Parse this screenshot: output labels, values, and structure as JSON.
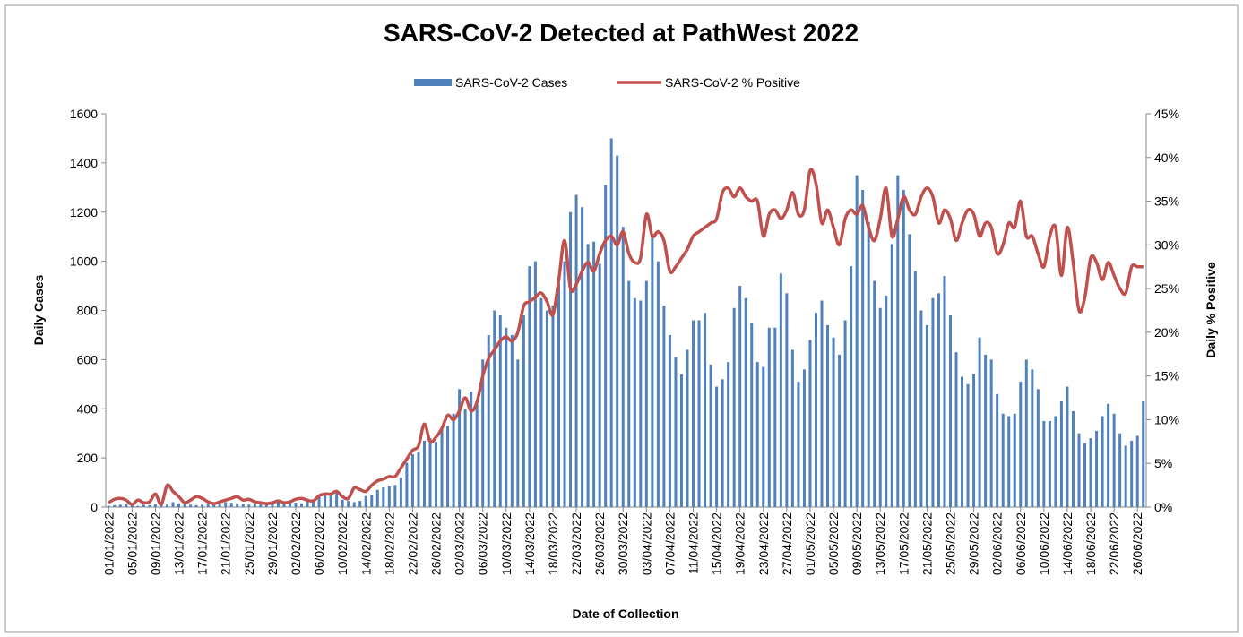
{
  "chart_data": {
    "type": "bar",
    "title": "SARS-CoV-2 Detected at PathWest 2022",
    "x_label": "Date of Collection",
    "y_label": "Daily Cases",
    "y2_label": "Daily % Positive",
    "categories": [
      "01/01/2022",
      null,
      null,
      null,
      "05/01/2022",
      null,
      null,
      null,
      "09/01/2022",
      null,
      null,
      null,
      "13/01/2022",
      null,
      null,
      null,
      "17/01/2022",
      null,
      null,
      null,
      "21/01/2022",
      null,
      null,
      null,
      "25/01/2022",
      null,
      null,
      null,
      "29/01/2022",
      null,
      null,
      null,
      "02/02/2022",
      null,
      null,
      null,
      "06/02/2022",
      null,
      null,
      null,
      "10/02/2022",
      null,
      null,
      null,
      "14/02/2022",
      null,
      null,
      null,
      "18/02/2022",
      null,
      null,
      null,
      "22/02/2022",
      null,
      null,
      null,
      "26/02/2022",
      null,
      null,
      null,
      "02/03/2022",
      null,
      null,
      null,
      "06/03/2022",
      null,
      null,
      null,
      "10/03/2022",
      null,
      null,
      null,
      "14/03/2022",
      null,
      null,
      null,
      "18/03/2022",
      null,
      null,
      null,
      "22/03/2022",
      null,
      null,
      null,
      "26/03/2022",
      null,
      null,
      null,
      "30/03/2022",
      null,
      null,
      null,
      "03/04/2022",
      null,
      null,
      null,
      "07/04/2022",
      null,
      null,
      null,
      "11/04/2022",
      null,
      null,
      null,
      "15/04/2022",
      null,
      null,
      null,
      "19/04/2022",
      null,
      null,
      null,
      "23/04/2022",
      null,
      null,
      null,
      "27/04/2022",
      null,
      null,
      null,
      "01/05/2022",
      null,
      null,
      null,
      "05/05/2022",
      null,
      null,
      null,
      "09/05/2022",
      null,
      null,
      null,
      "13/05/2022",
      null,
      null,
      null,
      "17/05/2022",
      null,
      null,
      null,
      "21/05/2022",
      null,
      null,
      null,
      "25/05/2022",
      null,
      null,
      null,
      "29/05/2022",
      null,
      null,
      null,
      "02/06/2022",
      null,
      null,
      null,
      "06/06/2022",
      null,
      null,
      null,
      "10/06/2022",
      null,
      null,
      null,
      "14/06/2022",
      null,
      null,
      null,
      "18/06/2022",
      null,
      null,
      null,
      "22/06/2022",
      null,
      null,
      null,
      "26/06/2022",
      null
    ],
    "series": [
      {
        "name": "SARS-CoV-2 Cases",
        "type": "bar",
        "color": "#4f81bd",
        "values": [
          5,
          8,
          10,
          12,
          8,
          5,
          10,
          8,
          12,
          15,
          10,
          20,
          15,
          12,
          10,
          8,
          10,
          15,
          12,
          15,
          20,
          18,
          15,
          12,
          10,
          15,
          12,
          10,
          15,
          20,
          18,
          20,
          18,
          15,
          25,
          30,
          40,
          50,
          55,
          60,
          30,
          25,
          20,
          25,
          45,
          50,
          70,
          80,
          85,
          90,
          120,
          180,
          215,
          225,
          270,
          280,
          265,
          320,
          330,
          380,
          480,
          400,
          470,
          420,
          600,
          700,
          800,
          780,
          730,
          700,
          600,
          780,
          980,
          1000,
          850,
          800,
          820,
          910,
          1000,
          1200,
          1270,
          1220,
          1070,
          1080,
          990,
          1310,
          1500,
          1430,
          1140,
          920,
          850,
          840,
          920,
          1110,
          1000,
          820,
          700,
          610,
          540,
          640,
          760,
          760,
          790,
          580,
          490,
          520,
          590,
          810,
          900,
          850,
          750,
          590,
          570,
          730,
          730,
          950,
          870,
          640,
          510,
          560,
          680,
          790,
          840,
          740,
          690,
          620,
          760,
          980,
          1350,
          1290,
          1160,
          920,
          810,
          860,
          1070,
          1350,
          1290,
          1110,
          960,
          800,
          740,
          850,
          870,
          940,
          780,
          630,
          530,
          500,
          540,
          690,
          620,
          600,
          460,
          380,
          370,
          380,
          510,
          600,
          560,
          480,
          350,
          350,
          370,
          430,
          490,
          390,
          300,
          260,
          280,
          310,
          370,
          420,
          380,
          300,
          250,
          270,
          290,
          430
        ]
      },
      {
        "name": "SARS-CoV-2 % Positive",
        "type": "line",
        "axis": "y2",
        "color": "#c0504d",
        "values": [
          0.5,
          0.9,
          1.0,
          0.8,
          0.3,
          0.8,
          0.5,
          0.6,
          1.5,
          0.3,
          2.5,
          1.8,
          1.2,
          0.5,
          0.8,
          1.2,
          1.0,
          0.6,
          0.4,
          0.6,
          0.8,
          1.0,
          1.2,
          0.8,
          0.9,
          0.6,
          0.5,
          0.4,
          0.5,
          0.7,
          0.5,
          0.6,
          0.9,
          1.0,
          0.8,
          0.7,
          1.3,
          1.5,
          1.5,
          1.8,
          1.2,
          1.0,
          2.2,
          2.0,
          1.8,
          2.5,
          3.0,
          3.2,
          3.5,
          3.5,
          4.5,
          5.5,
          6.5,
          7.0,
          9.5,
          7.5,
          8.0,
          9.0,
          10.5,
          10.0,
          11.0,
          12.5,
          11.0,
          12.0,
          15.0,
          17.0,
          18.0,
          19.0,
          19.5,
          19.0,
          20.0,
          23.0,
          23.5,
          24.0,
          24.5,
          23.5,
          22.0,
          26.0,
          30.5,
          25.0,
          25.5,
          27.0,
          28.0,
          27.0,
          29.0,
          30.5,
          31.0,
          30.0,
          31.5,
          29.0,
          28.0,
          28.5,
          33.5,
          31.0,
          31.5,
          30.5,
          27.0,
          27.5,
          28.5,
          29.5,
          31.0,
          31.5,
          32.0,
          32.5,
          33.0,
          36.0,
          36.5,
          35.5,
          36.5,
          35.5,
          35.0,
          35.0,
          31.0,
          33.5,
          34.0,
          33.0,
          34.0,
          36.0,
          33.5,
          34.0,
          38.5,
          37.0,
          32.5,
          34.0,
          32.0,
          30.0,
          33.0,
          34.0,
          33.5,
          34.5,
          32.0,
          30.5,
          33.0,
          36.5,
          31.0,
          33.0,
          35.5,
          34.0,
          33.5,
          35.5,
          36.5,
          35.5,
          32.5,
          34.0,
          33.0,
          30.5,
          32.5,
          34.0,
          33.5,
          31.0,
          32.5,
          32.0,
          29.0,
          30.0,
          32.5,
          32.0,
          35.0,
          31.0,
          31.0,
          29.0,
          27.5,
          31.0,
          32.0,
          26.5,
          32.0,
          28.0,
          22.5,
          24.0,
          28.5,
          28.0,
          26.0,
          28.0,
          26.5,
          25.0,
          24.5,
          27.5,
          27.5,
          27.5
        ]
      }
    ],
    "ylim": [
      0,
      1600
    ],
    "yticks": [
      0,
      200,
      400,
      600,
      800,
      1000,
      1200,
      1400,
      1600
    ],
    "y2lim": [
      0,
      45
    ],
    "y2ticks": [
      {
        "value": 0,
        "label": "0%"
      },
      {
        "value": 5,
        "label": "5%"
      },
      {
        "value": 10,
        "label": "10%"
      },
      {
        "value": 15,
        "label": "15%"
      },
      {
        "value": 20,
        "label": "20%"
      },
      {
        "value": 25,
        "label": "25%"
      },
      {
        "value": 30,
        "label": "30%"
      },
      {
        "value": 35,
        "label": "35%"
      },
      {
        "value": 40,
        "label": "40%"
      },
      {
        "value": 45,
        "label": "45%"
      }
    ],
    "legend": "top",
    "grid": false
  }
}
